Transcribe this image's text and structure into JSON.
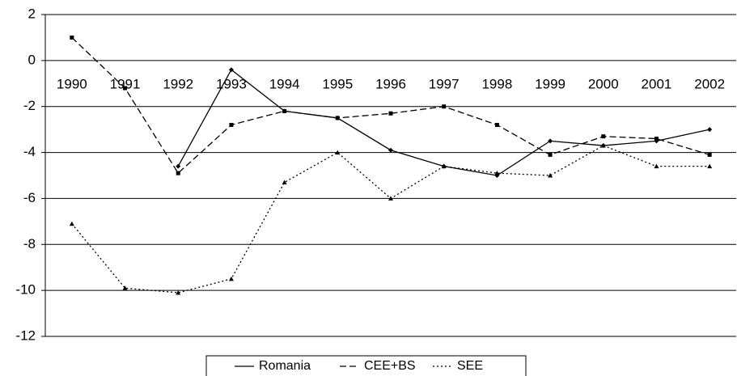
{
  "chart_data": {
    "type": "line",
    "categories": [
      "1990",
      "1991",
      "1992",
      "1993",
      "1994",
      "1995",
      "1996",
      "1997",
      "1998",
      "1999",
      "2000",
      "2001",
      "2002"
    ],
    "series": [
      {
        "name": "Romania",
        "color": "#000000",
        "style": "solid",
        "marker": "diamond",
        "values": [
          null,
          null,
          -4.6,
          -0.4,
          -2.2,
          -2.5,
          -3.9,
          -4.6,
          -5.0,
          -3.5,
          -3.7,
          -3.5,
          -3.0
        ]
      },
      {
        "name": "CEE+BS",
        "color": "#000000",
        "style": "dashed",
        "marker": "square",
        "values": [
          1.0,
          -1.2,
          -4.9,
          -2.8,
          -2.2,
          -2.5,
          -2.3,
          -2.0,
          -2.8,
          -4.1,
          -3.3,
          -3.4,
          -4.1
        ]
      },
      {
        "name": "SEE",
        "color": "#000000",
        "style": "dotted",
        "marker": "triangle",
        "values": [
          -7.1,
          -9.9,
          -10.1,
          -9.5,
          -5.3,
          -4.0,
          -6.0,
          -4.6,
          -4.9,
          -5.0,
          -3.7,
          -4.6,
          -4.6
        ]
      }
    ],
    "ylim": [
      -12,
      2
    ],
    "yticks": [
      -12,
      -10,
      -8,
      -6,
      -4,
      -2,
      0,
      2
    ],
    "grid": true,
    "legend": "bottom"
  }
}
